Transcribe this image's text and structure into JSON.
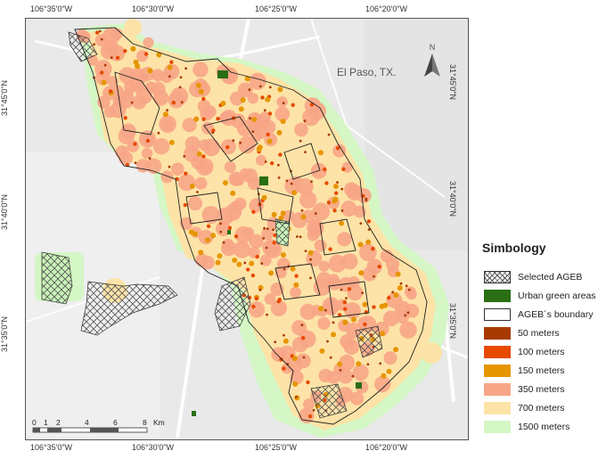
{
  "map": {
    "city_label": "El Paso, TX.",
    "north_label": "N",
    "lon_ticks_top": [
      "106°35'0\"W",
      "106°30'0\"W",
      "106°25'0\"W",
      "106°20'0\"W"
    ],
    "lon_ticks_bottom": [
      "106°35'0\"W",
      "106°30'0\"W",
      "106°25'0\"W",
      "106°20'0\"W"
    ],
    "lat_ticks_left": [
      "31°45'0\"N",
      "31°40'0\"N",
      "31°35'0\"N"
    ],
    "lat_ticks_right": [
      "31°45'0\"N",
      "31°40'0\"N",
      "31°35'0\"N"
    ],
    "scale": {
      "labels": [
        "0",
        "1",
        "2",
        "4",
        "6",
        "8"
      ],
      "unit": "Km"
    }
  },
  "legend": {
    "title": "Simbology",
    "items": [
      {
        "label": "Selected AGEB",
        "swatch": "hatch",
        "color": "#ffffff"
      },
      {
        "label": "Urban green areas",
        "swatch": "fill",
        "color": "#2a6e14"
      },
      {
        "label": "AGEB´s boundary",
        "swatch": "outline",
        "color": "#ffffff"
      },
      {
        "label": "50   meters",
        "swatch": "fill",
        "color": "#a83a00"
      },
      {
        "label": "100  meters",
        "swatch": "fill",
        "color": "#e64a00"
      },
      {
        "label": "150  meters",
        "swatch": "fill",
        "color": "#e69600"
      },
      {
        "label": "350  meters",
        "swatch": "fill",
        "color": "#f7a587"
      },
      {
        "label": "700  meters",
        "swatch": "fill",
        "color": "#fde3a7"
      },
      {
        "label": "1500  meters",
        "swatch": "fill",
        "color": "#d4f7c5"
      }
    ]
  }
}
